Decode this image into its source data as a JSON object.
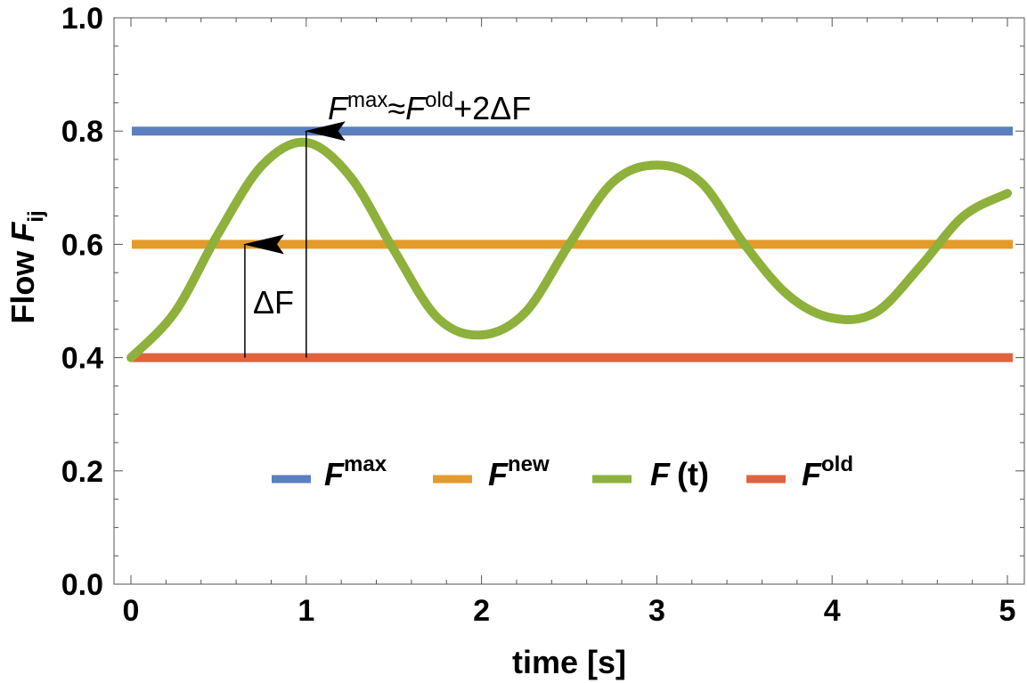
{
  "chart_data": {
    "type": "line",
    "xlabel": "time [s]",
    "ylabel": {
      "text": "Flow ",
      "symbol": "F",
      "subscript": "ij"
    },
    "xlim": [
      0,
      5
    ],
    "ylim": [
      0,
      1.0
    ],
    "x_ticks": [
      "0",
      "1",
      "2",
      "3",
      "4",
      "5"
    ],
    "y_ticks": [
      "0.0",
      "0.2",
      "0.4",
      "0.6",
      "0.8",
      "1.0"
    ],
    "grid": false,
    "legend_position": "center",
    "series": [
      {
        "key": "max",
        "name": "max",
        "symbol": "F",
        "color": "#5b7fbf",
        "kind": "constant",
        "y": 0.8
      },
      {
        "key": "new",
        "name": "new",
        "symbol": "F",
        "color": "#e39b2b",
        "kind": "constant",
        "y": 0.6
      },
      {
        "key": "ft",
        "name": "(t)",
        "symbol": "F",
        "color": "#8db13b",
        "kind": "curve",
        "x": [
          0,
          0.25,
          0.5,
          0.75,
          1.0,
          1.25,
          1.5,
          1.75,
          2.0,
          2.25,
          2.5,
          2.75,
          3.0,
          3.25,
          3.5,
          3.75,
          4.0,
          4.25,
          4.5,
          4.75,
          5.0
        ],
        "y": [
          0.4,
          0.48,
          0.62,
          0.74,
          0.78,
          0.72,
          0.59,
          0.47,
          0.44,
          0.48,
          0.6,
          0.71,
          0.74,
          0.71,
          0.6,
          0.51,
          0.47,
          0.48,
          0.56,
          0.65,
          0.69
        ]
      },
      {
        "key": "old",
        "name": "old",
        "symbol": "F",
        "color": "#e0623e",
        "kind": "constant",
        "y": 0.4
      }
    ],
    "annotations": [
      {
        "key": "deltaF",
        "label": "ΔF",
        "x": 0.65,
        "y_from": 0.4,
        "y_to": 0.6
      },
      {
        "key": "fmax_arrow",
        "x": 1.0,
        "y_from": 0.4,
        "y_to": 0.8
      }
    ],
    "formula": {
      "F1": "F",
      "sup1": "max",
      "approx": "≈",
      "F2": "F",
      "sup2": "old",
      "tail": "+2ΔF"
    }
  }
}
